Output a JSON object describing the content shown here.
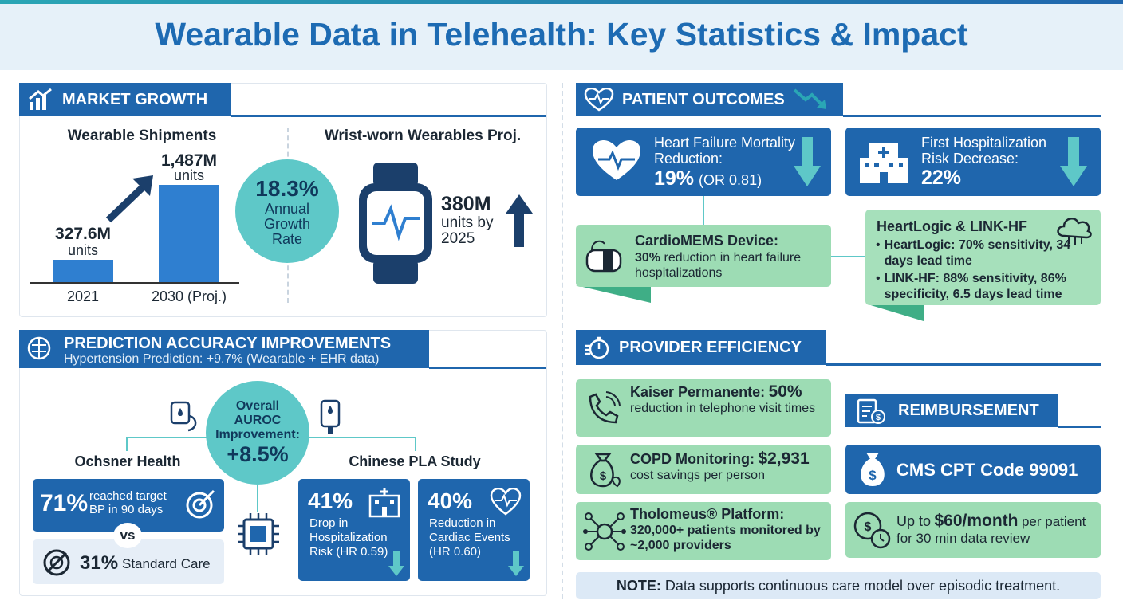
{
  "title": "Wearable Data in Telehealth: Key Statistics & Impact",
  "market_growth": {
    "heading": "MARKET GROWTH",
    "shipments": {
      "title": "Wearable Shipments",
      "bars": [
        {
          "value": "327.6M",
          "unit": "units",
          "label": "2021"
        },
        {
          "value": "1,487M",
          "unit": "units",
          "label": "2030 (Proj.)"
        }
      ]
    },
    "growth": {
      "value": "18.3%",
      "label": "Annual Growth Rate"
    },
    "wrist": {
      "title": "Wrist-worn Wearables Proj.",
      "value": "380M",
      "label": "units by 2025"
    }
  },
  "prediction": {
    "heading": "PREDICTION ACCURACY IMPROVEMENTS",
    "subheading": "Hypertension Prediction: +9.7% (Wearable + EHR data)",
    "auroc": {
      "label": "Overall AUROC Improvement:",
      "value": "+8.5%"
    },
    "ochsner": {
      "title": "Ochsner Health",
      "value": "71%",
      "text": "reached target BP in 90 days",
      "vs": "vs",
      "compare_value": "31%",
      "compare_text": "Standard Care"
    },
    "pla": {
      "title": "Chinese PLA Study",
      "cards": [
        {
          "value": "41%",
          "text": "Drop in Hospitalization Risk (HR 0.59)"
        },
        {
          "value": "40%",
          "text": "Reduction in Cardiac Events (HR 0.60)"
        }
      ]
    }
  },
  "patient_outcomes": {
    "heading": "PATIENT OUTCOMES",
    "cards": [
      {
        "title": "Heart Failure Mortality Reduction:",
        "value": "19%",
        "note": "(OR 0.81)"
      },
      {
        "title": "First Hospitalization Risk Decrease:",
        "value": "22%"
      }
    ],
    "cardiomems": {
      "title": "CardioMEMS Device:",
      "value": "30%",
      "text": "reduction in heart failure hospitalizations"
    },
    "heartlogic": {
      "title": "HeartLogic & LINK-HF",
      "items": [
        {
          "label": "HeartLogic:",
          "text": "70% sensitivity, 34 days lead time"
        },
        {
          "label": "LINK-HF:",
          "text": "88% sensitivity, 86% specificity, 6.5 days lead time"
        }
      ]
    }
  },
  "provider_efficiency": {
    "heading": "PROVIDER EFFICIENCY",
    "items": [
      {
        "title": "Kaiser Permanente:",
        "value": "50%",
        "text": "reduction in telephone visit times"
      },
      {
        "title": "COPD Monitoring:",
        "value": "$2,931",
        "text": "cost savings per person"
      },
      {
        "title": "Tholomeus® Platform:",
        "text": "320,000+ patients monitored by ~2,000 providers"
      }
    ]
  },
  "reimbursement": {
    "heading": "REIMBURSEMENT",
    "code": "CMS CPT Code 99091",
    "payment": {
      "prefix": "Up to",
      "value": "$60/month",
      "text": "per patient for 30 min data review"
    }
  },
  "note": {
    "label": "NOTE:",
    "text": "Data supports continuous care model over episodic treatment."
  }
}
